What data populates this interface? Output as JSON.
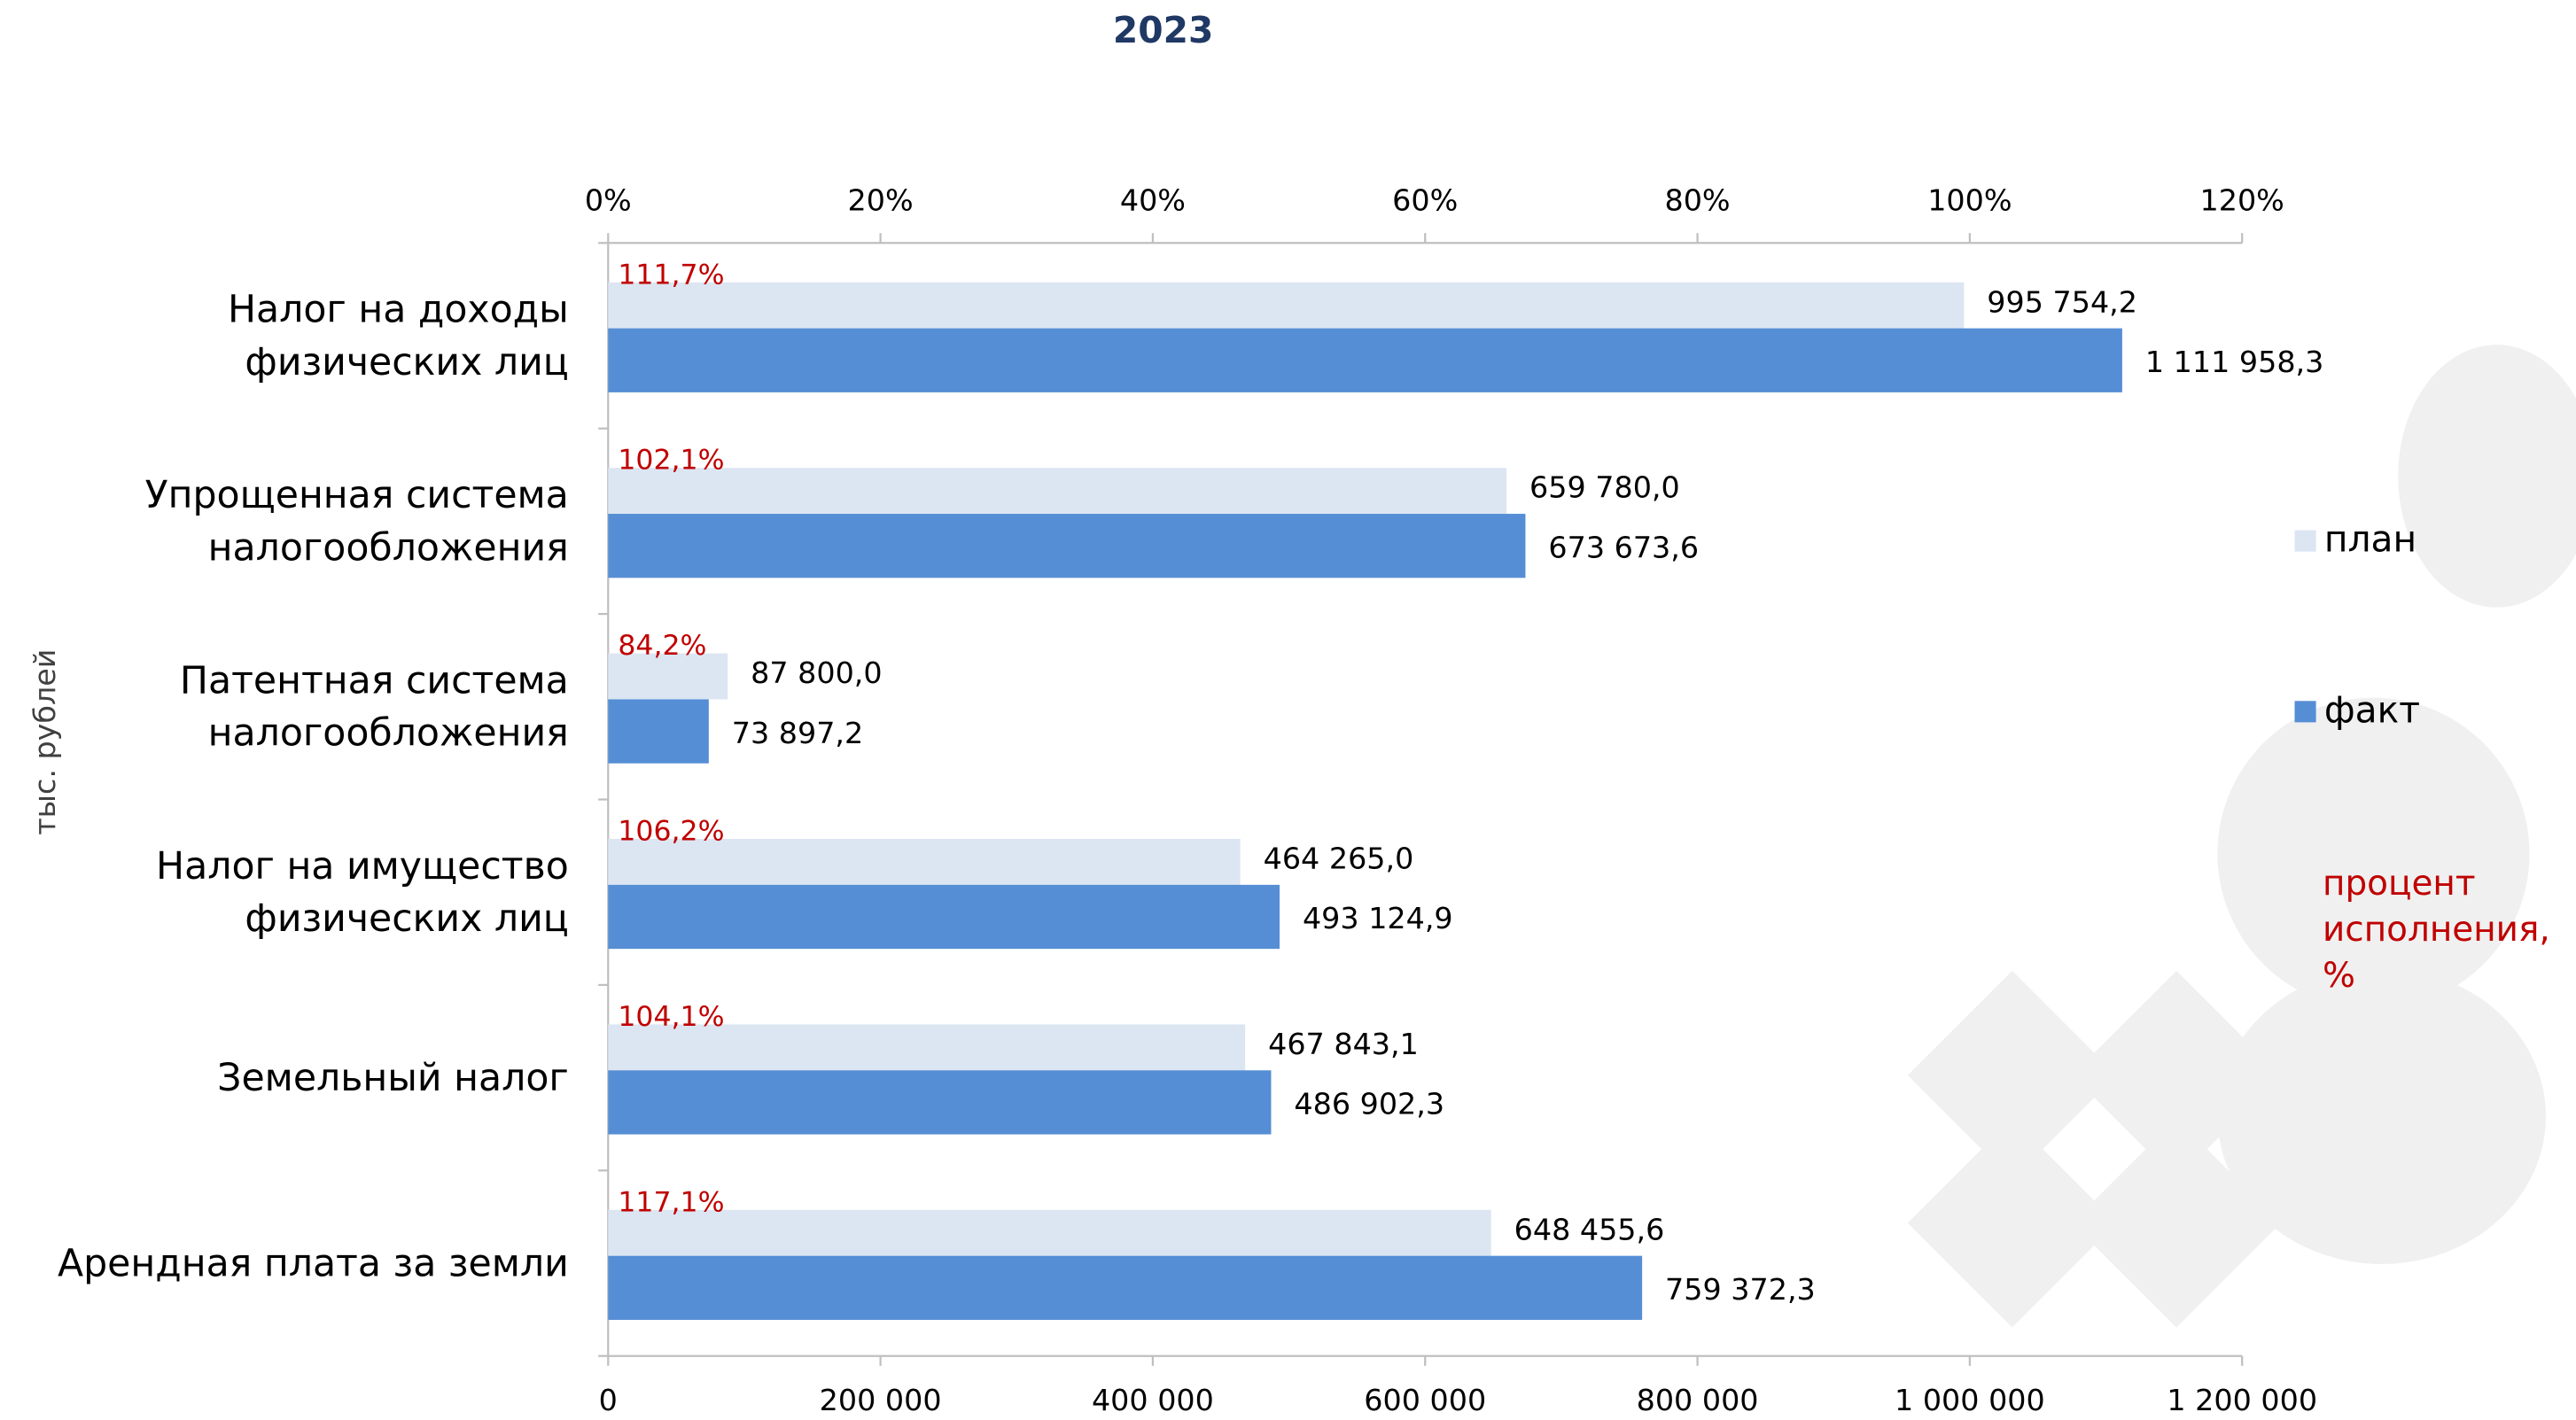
{
  "chart_data": {
    "type": "bar",
    "orientation": "horizontal",
    "title": "2023",
    "y_label": "тыс. рублей",
    "categories": [
      [
        "Налог на доходы",
        "физических лиц"
      ],
      [
        "Упрощенная система",
        "налогообложения"
      ],
      [
        "Патентная система",
        "налогообложения"
      ],
      [
        "Налог на имущество",
        "физических лиц"
      ],
      [
        "Земельный налог"
      ],
      [
        "Арендная плата за земли"
      ]
    ],
    "series": [
      {
        "name": "план",
        "color": "#dce6f2",
        "values": [
          995754.2,
          659780.0,
          87800.0,
          464265.0,
          467843.1,
          648455.6
        ],
        "value_labels": [
          "995 754,2",
          "659 780,0",
          "87 800,0",
          "464 265,0",
          "467 843,1",
          "648 455,6"
        ]
      },
      {
        "name": "факт",
        "color": "#558ed5",
        "values": [
          1111958.3,
          673673.6,
          73897.2,
          493124.9,
          486902.3,
          759372.3
        ],
        "value_labels": [
          "1 111 958,3",
          "673 673,6",
          "73 897,2",
          "493 124,9",
          "486 902,3",
          "759 372,3"
        ]
      },
      {
        "name": "процент исполнения, %",
        "color": "#c00000",
        "axis": "x2",
        "values": [
          111.7,
          102.1,
          84.2,
          106.2,
          104.1,
          117.1
        ],
        "value_labels": [
          "111,7%",
          "102,1%",
          "84,2%",
          "106,2%",
          "104,1%",
          "117,1%"
        ]
      }
    ],
    "xlim": [
      0,
      1200000
    ],
    "xticks": [
      0,
      {
        "value": 200000,
        "label": "200 000"
      },
      {
        "value": 400000,
        "label": "400 000"
      },
      {
        "value": 600000,
        "label": "600 000"
      },
      {
        "value": 800000,
        "label": "800 000"
      },
      {
        "value": 1000000,
        "label": "1 000 000"
      },
      {
        "value": 1200000,
        "label": "1 200 000"
      }
    ],
    "x2lim": [
      0,
      120
    ],
    "x2ticks": [
      {
        "value": 0,
        "label": "0%"
      },
      {
        "value": 20,
        "label": "20%"
      },
      {
        "value": 40,
        "label": "40%"
      },
      {
        "value": 60,
        "label": "60%"
      },
      {
        "value": 80,
        "label": "80%"
      },
      {
        "value": 100,
        "label": "100%"
      },
      {
        "value": 120,
        "label": "120%"
      }
    ],
    "legend": "right",
    "grid": false
  }
}
